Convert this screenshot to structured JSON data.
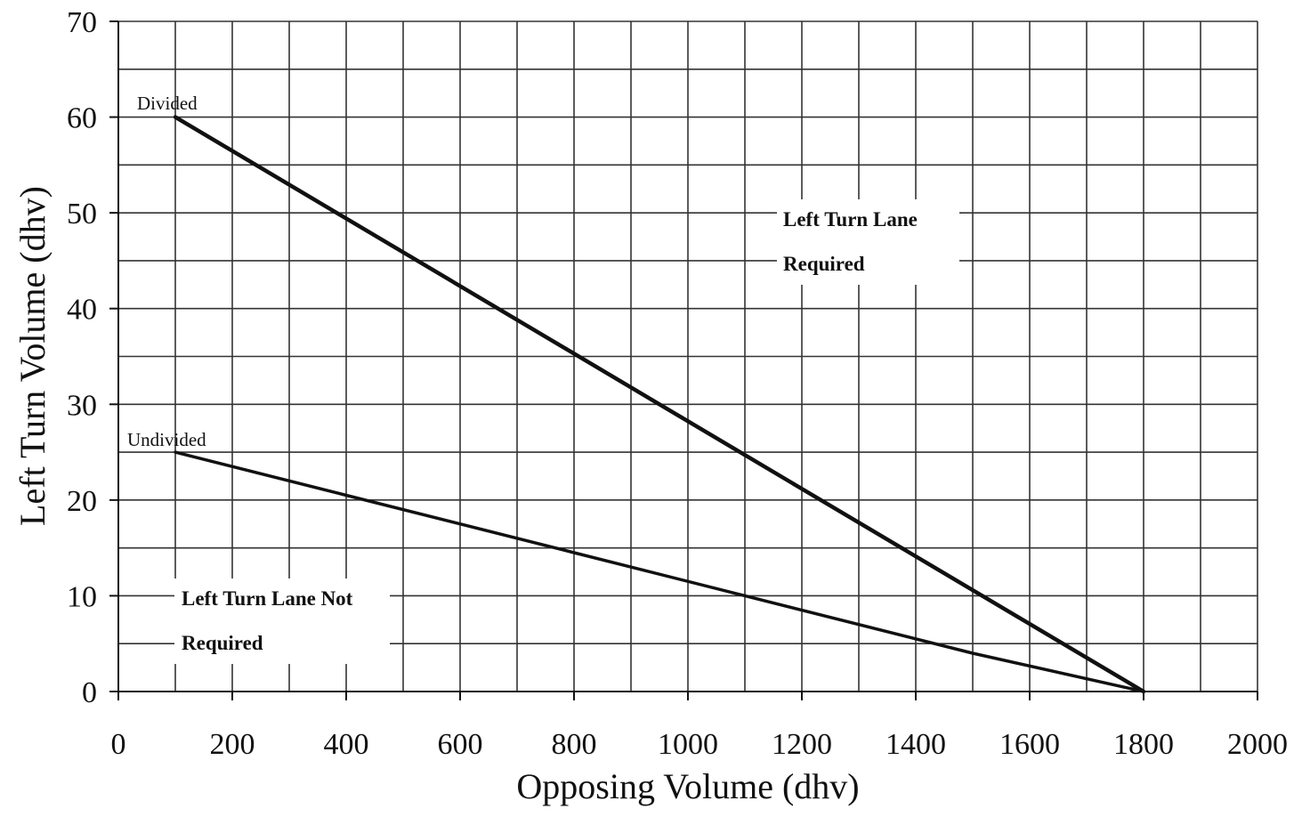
{
  "chart_data": {
    "type": "line",
    "title": "",
    "xlabel": "Opposing Volume (dhv)",
    "ylabel": "Left Turn Volume (dhv)",
    "xlim": [
      0,
      2000
    ],
    "ylim": [
      0,
      70
    ],
    "x_ticks": [
      0,
      200,
      400,
      600,
      800,
      1000,
      1200,
      1400,
      1600,
      1800,
      2000
    ],
    "y_ticks": [
      0,
      10,
      20,
      30,
      40,
      50,
      60,
      70
    ],
    "x_minor_step": 100,
    "y_minor_step": 5,
    "grid": true,
    "series": [
      {
        "name": "Divided",
        "points": [
          {
            "x": 100,
            "y": 60
          },
          {
            "x": 1800,
            "y": 0
          }
        ]
      },
      {
        "name": "Undivided",
        "points": [
          {
            "x": 100,
            "y": 25
          },
          {
            "x": 400,
            "y": 20.5
          },
          {
            "x": 800,
            "y": 14.5
          },
          {
            "x": 1100,
            "y": 10
          },
          {
            "x": 1500,
            "y": 4
          },
          {
            "x": 1800,
            "y": 0
          }
        ]
      }
    ],
    "annotations": [
      {
        "id": "region-required",
        "lines": [
          "Left Turn Lane",
          "Required"
        ]
      },
      {
        "id": "region-not-required",
        "lines": [
          "Left Turn Lane Not",
          "Required"
        ]
      }
    ],
    "colors": {
      "line": "#111111",
      "grid": "#333333",
      "background": "#ffffff"
    }
  }
}
